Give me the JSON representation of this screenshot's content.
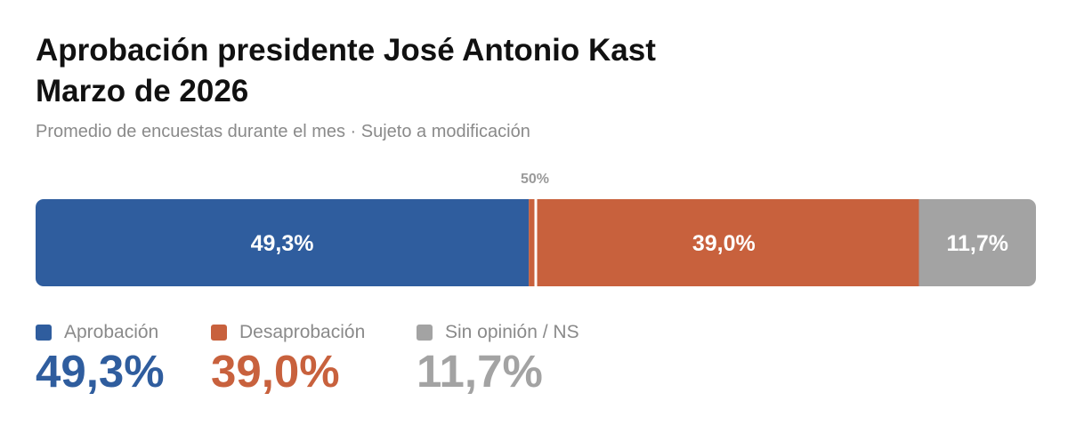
{
  "title_line1": "Aprobación presidente José Antonio Kast",
  "title_line2": "Marzo de 2026",
  "subtitle": "Promedio de encuestas durante el mes · Sujeto a modificación",
  "midpoint_label": "50%",
  "chart_data": {
    "type": "bar",
    "orientation": "horizontal-stacked",
    "categories": [
      "Aprobación",
      "Desaprobación",
      "Sin opinión / NS"
    ],
    "values": [
      49.3,
      39.0,
      11.7
    ],
    "value_labels": [
      "49,3%",
      "39,0%",
      "11,7%"
    ],
    "xlim": [
      0,
      100
    ],
    "reference_line": 50,
    "colors": [
      "#2f5d9e",
      "#c8613d",
      "#a3a3a3"
    ]
  },
  "legend": [
    {
      "label": "Aprobación",
      "value": "49,3%",
      "color": "#2f5d9e"
    },
    {
      "label": "Desaprobación",
      "value": "39,0%",
      "color": "#c8613d"
    },
    {
      "label": "Sin opinión / NS",
      "value": "11,7%",
      "color": "#a3a3a3"
    }
  ]
}
